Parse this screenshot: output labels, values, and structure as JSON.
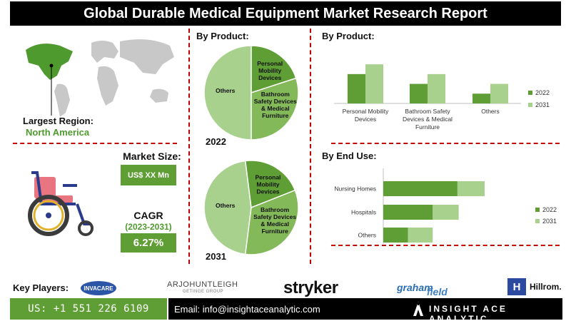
{
  "title": "Global Durable Medical Equipment Market Research Report",
  "largest_region": {
    "label": "Largest Region:",
    "value": "North America"
  },
  "market_size": {
    "label": "Market Size:",
    "value": "US$ XX Mn"
  },
  "cagr": {
    "label": "CAGR",
    "period": "(2023-2031)",
    "value": "6.27%"
  },
  "colors": {
    "dark_green": "#5f9e34",
    "light_green": "#a9d18e",
    "mid_green": "#84b95a",
    "region_green": "#4f9a2e",
    "divider_red": "#c00000"
  },
  "key_players": {
    "label": "Key Players:",
    "logos": [
      "INVACARE",
      "ARJOHUNTLEIGH",
      "GETINGE GROUP",
      "stryker",
      "graham",
      "field",
      "Hillrom."
    ]
  },
  "footer": {
    "phone": "US: +1 551 226 6109",
    "email": "Email: info@insightaceanalytic.com",
    "brand": "INSIGHT ACE ANALYTIC"
  },
  "chart_data": [
    {
      "type": "pie",
      "title": "By Product:",
      "year": "2022",
      "slices": [
        {
          "label": "Others",
          "value": 50
        },
        {
          "label": "Personal Mobility Devices",
          "value": 20
        },
        {
          "label": "Bathroom Safety Devices & Medical Furniture",
          "value": 30
        }
      ]
    },
    {
      "type": "pie",
      "title": "By Product:",
      "year": "2031",
      "slices": [
        {
          "label": "Others",
          "value": 46
        },
        {
          "label": "Personal Mobility Devices",
          "value": 21
        },
        {
          "label": "Bathroom Safety Devices & Medical Furniture",
          "value": 33
        }
      ]
    },
    {
      "type": "bar",
      "title": "By Product:",
      "categories": [
        "Personal Mobility Devices",
        "Bathroom Safety Devices & Medical Furniture",
        "Others"
      ],
      "series": [
        {
          "name": "2022",
          "values": [
            48,
            32,
            16
          ]
        },
        {
          "name": "2031",
          "values": [
            64,
            48,
            32
          ]
        }
      ],
      "legend": "right"
    },
    {
      "type": "bar",
      "orientation": "horizontal",
      "stacked": true,
      "title": "By End Use:",
      "categories": [
        "Nursing Homes",
        "Hospitals",
        "Others"
      ],
      "series": [
        {
          "name": "2022",
          "values": [
            60,
            40,
            20
          ]
        },
        {
          "name": "2031",
          "values": [
            82,
            61,
            40
          ]
        }
      ],
      "legend": "right"
    }
  ]
}
